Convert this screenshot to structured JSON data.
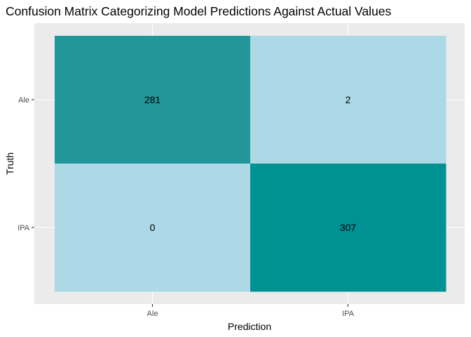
{
  "chart_data": {
    "type": "heatmap",
    "title": "Confusion Matrix Categorizing Model Predictions Against Actual Values",
    "xlabel": "Prediction",
    "ylabel": "Truth",
    "x_categories": [
      "Ale",
      "IPA"
    ],
    "y_categories": [
      "Ale",
      "IPA"
    ],
    "cells": [
      {
        "prediction": "Ale",
        "truth": "Ale",
        "value": 281,
        "color": "#229799"
      },
      {
        "prediction": "IPA",
        "truth": "Ale",
        "value": 2,
        "color": "#add8e6"
      },
      {
        "prediction": "Ale",
        "truth": "IPA",
        "value": 0,
        "color": "#add8e6"
      },
      {
        "prediction": "IPA",
        "truth": "IPA",
        "value": 307,
        "color": "#009193"
      }
    ],
    "panel_background": "#ebebeb",
    "grid_color": "#ffffff",
    "grid": true,
    "legend": "none"
  }
}
